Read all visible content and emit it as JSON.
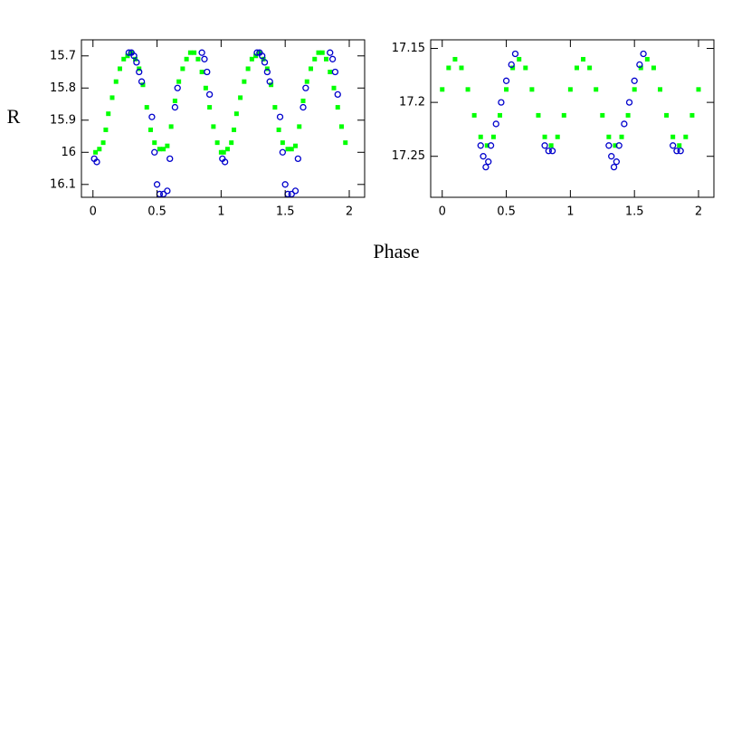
{
  "chart_data": [
    {
      "type": "scatter",
      "ylabel": "R",
      "xlabel": "Phase",
      "xlim": [
        -0.09,
        2.12
      ],
      "ylim": [
        16.14,
        15.65
      ],
      "xticks": [
        0,
        0.5,
        1,
        1.5,
        2
      ],
      "yticks": [
        15.7,
        15.8,
        15.9,
        16,
        16.1
      ],
      "series": [
        {
          "color": "#00ff00",
          "marker": "cross",
          "x": [
            0.02,
            0.05,
            0.08,
            0.1,
            0.12,
            0.15,
            0.18,
            0.21,
            0.24,
            0.27,
            0.3,
            0.33,
            0.36,
            0.39,
            0.42,
            0.45,
            0.48,
            0.52,
            0.55,
            0.58,
            0.61,
            0.64,
            0.67,
            0.7,
            0.73,
            0.76,
            0.79,
            0.82,
            0.85,
            0.88,
            0.91,
            0.94,
            0.97,
            1.0,
            1.02,
            1.05,
            1.08,
            1.1,
            1.12,
            1.15,
            1.18,
            1.21,
            1.24,
            1.27,
            1.3,
            1.33,
            1.36,
            1.39,
            1.42,
            1.45,
            1.48,
            1.52,
            1.55,
            1.58,
            1.61,
            1.64,
            1.67,
            1.7,
            1.73,
            1.76,
            1.79,
            1.82,
            1.85,
            1.88,
            1.91,
            1.94,
            1.97
          ],
          "values": [
            16,
            15.99,
            15.97,
            15.93,
            15.88,
            15.83,
            15.78,
            15.74,
            15.71,
            15.7,
            15.69,
            15.71,
            15.74,
            15.79,
            15.86,
            15.93,
            15.97,
            15.99,
            15.99,
            15.98,
            15.92,
            15.84,
            15.78,
            15.74,
            15.71,
            15.69,
            15.69,
            15.71,
            15.75,
            15.8,
            15.86,
            15.92,
            15.97,
            16,
            16,
            15.99,
            15.97,
            15.93,
            15.88,
            15.83,
            15.78,
            15.74,
            15.71,
            15.7,
            15.69,
            15.71,
            15.74,
            15.79,
            15.86,
            15.93,
            15.97,
            15.99,
            15.99,
            15.98,
            15.92,
            15.84,
            15.78,
            15.74,
            15.71,
            15.69,
            15.69,
            15.71,
            15.75,
            15.8,
            15.86,
            15.92,
            15.97
          ]
        },
        {
          "color": "#0000cc",
          "marker": "circle",
          "x": [
            0.01,
            0.03,
            0.28,
            0.3,
            0.32,
            0.34,
            0.36,
            0.38,
            0.46,
            0.48,
            0.5,
            0.52,
            0.55,
            0.58,
            0.6,
            0.64,
            0.66,
            0.85,
            0.87,
            0.89,
            0.91,
            1.01,
            1.03,
            1.28,
            1.3,
            1.32,
            1.34,
            1.36,
            1.38,
            1.46,
            1.48,
            1.5,
            1.52,
            1.55,
            1.58,
            1.6,
            1.64,
            1.66,
            1.85,
            1.87,
            1.89,
            1.91
          ],
          "values": [
            16.02,
            16.03,
            15.69,
            15.69,
            15.7,
            15.72,
            15.75,
            15.78,
            15.89,
            16,
            16.1,
            16.13,
            16.13,
            16.12,
            16.02,
            15.86,
            15.8,
            15.69,
            15.71,
            15.75,
            15.82,
            16.02,
            16.03,
            15.69,
            15.69,
            15.7,
            15.72,
            15.75,
            15.78,
            15.89,
            16,
            16.1,
            16.13,
            16.13,
            16.12,
            16.02,
            15.86,
            15.8,
            15.69,
            15.71,
            15.75,
            15.82
          ]
        }
      ]
    },
    {
      "type": "scatter",
      "xlim": [
        -0.09,
        2.12
      ],
      "ylim": [
        17.288,
        17.142
      ],
      "xticks": [
        0,
        0.5,
        1,
        1.5,
        2
      ],
      "yticks": [
        17.15,
        17.2,
        17.25
      ],
      "series": [
        {
          "color": "#00ff00",
          "marker": "cross",
          "x": [
            0,
            0.05,
            0.1,
            0.15,
            0.2,
            0.25,
            0.3,
            0.35,
            0.4,
            0.45,
            0.5,
            0.55,
            0.6,
            0.65,
            0.7,
            0.75,
            0.8,
            0.85,
            0.9,
            0.95,
            1,
            1.05,
            1.1,
            1.15,
            1.2,
            1.25,
            1.3,
            1.35,
            1.4,
            1.45,
            1.5,
            1.55,
            1.6,
            1.65,
            1.7,
            1.75,
            1.8,
            1.85,
            1.9,
            1.95,
            2
          ],
          "values": [
            17.188,
            17.168,
            17.16,
            17.168,
            17.188,
            17.212,
            17.232,
            17.24,
            17.232,
            17.212,
            17.188,
            17.168,
            17.16,
            17.168,
            17.188,
            17.212,
            17.232,
            17.24,
            17.232,
            17.212,
            17.188,
            17.168,
            17.16,
            17.168,
            17.188,
            17.212,
            17.232,
            17.24,
            17.232,
            17.212,
            17.188,
            17.168,
            17.16,
            17.168,
            17.188,
            17.212,
            17.232,
            17.24,
            17.232,
            17.212,
            17.188
          ]
        },
        {
          "color": "#0000cc",
          "marker": "circle",
          "x": [
            0.3,
            0.32,
            0.34,
            0.36,
            0.38,
            0.42,
            0.46,
            0.5,
            0.54,
            0.57,
            0.8,
            0.83,
            0.86,
            1.3,
            1.32,
            1.34,
            1.36,
            1.38,
            1.42,
            1.46,
            1.5,
            1.54,
            1.57,
            1.8,
            1.83,
            1.86
          ],
          "values": [
            17.24,
            17.25,
            17.26,
            17.255,
            17.24,
            17.22,
            17.2,
            17.18,
            17.165,
            17.155,
            17.24,
            17.245,
            17.245,
            17.24,
            17.25,
            17.26,
            17.255,
            17.24,
            17.22,
            17.2,
            17.18,
            17.165,
            17.155,
            17.24,
            17.245,
            17.245
          ]
        }
      ]
    }
  ]
}
